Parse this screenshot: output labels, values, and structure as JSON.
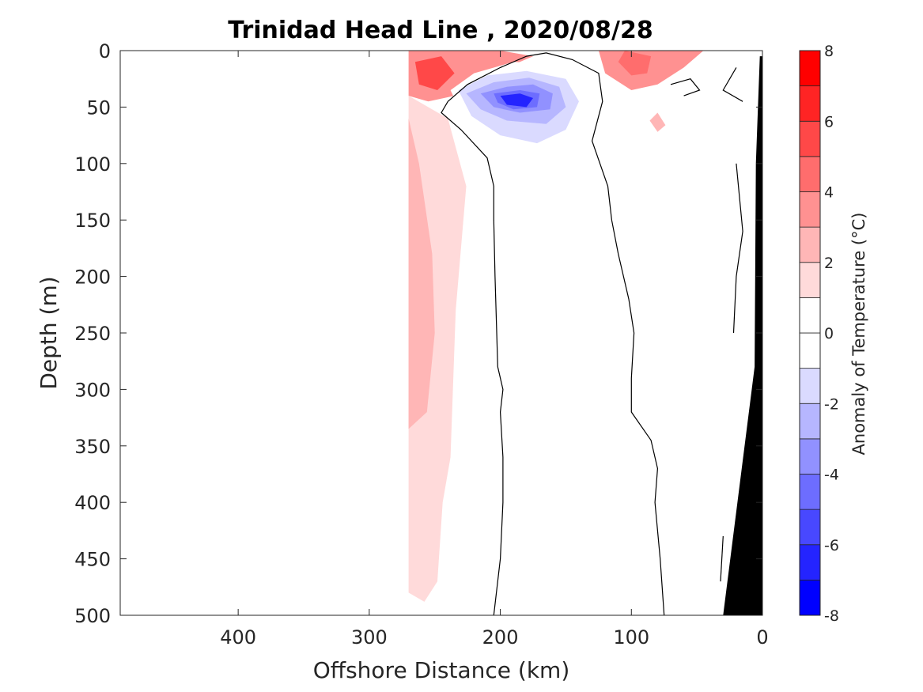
{
  "chart_data": {
    "type": "heatmap",
    "title": "Trinidad Head Line , 2020/08/28",
    "xlabel": "Offshore Distance (km)",
    "ylabel": "Depth (m)",
    "xlim": [
      490,
      0
    ],
    "ylim": [
      0,
      500
    ],
    "x_reversed": true,
    "y_reversed": true,
    "x_ticks": [
      400,
      300,
      200,
      100,
      0
    ],
    "y_ticks": [
      0,
      50,
      100,
      150,
      200,
      250,
      300,
      350,
      400,
      450,
      500
    ],
    "colorbar": {
      "label": "Anomaly of Temperature (°C)",
      "range": [
        -8,
        8
      ],
      "ticks": [
        8,
        6,
        4,
        2,
        0,
        -2,
        -4,
        -6,
        -8
      ],
      "levels": [
        -8,
        -7,
        -6,
        -5,
        -4,
        -3,
        -2,
        -1,
        0,
        1,
        2,
        3,
        4,
        5,
        6,
        7,
        8
      ],
      "colors": [
        "#0000ff",
        "#2424ff",
        "#4848ff",
        "#6d6dff",
        "#9191ff",
        "#b6b6ff",
        "#dadaff",
        "#ffffff",
        "#ffffff",
        "#ffdada",
        "#ffb6b6",
        "#ff9191",
        "#ff6d6d",
        "#ff4848",
        "#ff2424",
        "#ff0000"
      ]
    },
    "regions": [
      {
        "name": "warm-pink",
        "level": 1,
        "points": [
          [
            270,
            0
          ],
          [
            270,
            480
          ],
          [
            258,
            488
          ],
          [
            248,
            470
          ],
          [
            244,
            400
          ],
          [
            238,
            360
          ],
          [
            234,
            230
          ],
          [
            226,
            120
          ],
          [
            240,
            60
          ],
          [
            270,
            40
          ]
        ]
      },
      {
        "name": "warm-pink-2",
        "level": 2,
        "points": [
          [
            270,
            0
          ],
          [
            270,
            335
          ],
          [
            256,
            320
          ],
          [
            250,
            250
          ],
          [
            252,
            180
          ],
          [
            262,
            100
          ],
          [
            270,
            60
          ]
        ]
      },
      {
        "name": "warm-pink-3",
        "level": 2,
        "points": [
          [
            80,
            55
          ],
          [
            86,
            62
          ],
          [
            80,
            72
          ],
          [
            74,
            66
          ]
        ]
      },
      {
        "name": "warm-surface",
        "level": 3,
        "points": [
          [
            270,
            0
          ],
          [
            200,
            0
          ],
          [
            175,
            5
          ],
          [
            215,
            25
          ],
          [
            235,
            40
          ],
          [
            255,
            45
          ],
          [
            270,
            40
          ]
        ]
      },
      {
        "name": "warm-core",
        "level": 5,
        "points": [
          [
            265,
            10
          ],
          [
            245,
            5
          ],
          [
            235,
            20
          ],
          [
            248,
            35
          ],
          [
            262,
            30
          ]
        ]
      },
      {
        "name": "warm-nearshore",
        "level": 3,
        "points": [
          [
            125,
            0
          ],
          [
            45,
            0
          ],
          [
            60,
            15
          ],
          [
            80,
            30
          ],
          [
            100,
            35
          ],
          [
            120,
            20
          ]
        ]
      },
      {
        "name": "warm-nearshore-core",
        "level": 4,
        "points": [
          [
            105,
            0
          ],
          [
            85,
            5
          ],
          [
            88,
            20
          ],
          [
            100,
            22
          ],
          [
            110,
            10
          ]
        ]
      },
      {
        "name": "cool-1",
        "level": -1,
        "points": [
          [
            238,
            35
          ],
          [
            220,
            20
          ],
          [
            190,
            10
          ],
          [
            160,
            12
          ],
          [
            130,
            30
          ],
          [
            128,
            60
          ],
          [
            140,
            90
          ],
          [
            160,
            118
          ],
          [
            172,
            125
          ],
          [
            190,
            110
          ],
          [
            215,
            80
          ],
          [
            228,
            60
          ]
        ]
      },
      {
        "name": "cool-2",
        "level": -2,
        "points": [
          [
            232,
            35
          ],
          [
            210,
            22
          ],
          [
            180,
            18
          ],
          [
            150,
            25
          ],
          [
            140,
            45
          ],
          [
            150,
            70
          ],
          [
            172,
            82
          ],
          [
            200,
            75
          ],
          [
            222,
            58
          ]
        ]
      },
      {
        "name": "cool-3",
        "level": -3,
        "points": [
          [
            226,
            38
          ],
          [
            205,
            28
          ],
          [
            178,
            24
          ],
          [
            155,
            32
          ],
          [
            150,
            50
          ],
          [
            165,
            65
          ],
          [
            195,
            62
          ],
          [
            215,
            52
          ]
        ]
      },
      {
        "name": "cool-4",
        "level": -4,
        "points": [
          [
            215,
            38
          ],
          [
            195,
            32
          ],
          [
            175,
            30
          ],
          [
            160,
            38
          ],
          [
            162,
            52
          ],
          [
            185,
            55
          ],
          [
            205,
            50
          ]
        ]
      },
      {
        "name": "cool-5",
        "level": -5,
        "points": [
          [
            205,
            38
          ],
          [
            185,
            35
          ],
          [
            170,
            38
          ],
          [
            172,
            50
          ],
          [
            190,
            52
          ],
          [
            202,
            46
          ]
        ]
      },
      {
        "name": "cool-6",
        "level": -7,
        "points": [
          [
            200,
            40
          ],
          [
            185,
            38
          ],
          [
            175,
            42
          ],
          [
            180,
            50
          ],
          [
            195,
            48
          ]
        ]
      },
      {
        "name": "cool-small",
        "level": -1,
        "points": [
          [
            165,
            190
          ],
          [
            158,
            185
          ],
          [
            155,
            200
          ],
          [
            162,
            210
          ],
          [
            167,
            200
          ]
        ]
      }
    ],
    "contours": [
      {
        "level": 0,
        "points": [
          [
            240,
            45
          ],
          [
            225,
            30
          ],
          [
            200,
            15
          ],
          [
            180,
            5
          ],
          [
            165,
            2
          ],
          [
            145,
            8
          ],
          [
            125,
            20
          ],
          [
            122,
            45
          ],
          [
            130,
            80
          ],
          [
            118,
            120
          ],
          [
            115,
            150
          ],
          [
            110,
            180
          ],
          [
            102,
            220
          ],
          [
            98,
            250
          ],
          [
            100,
            290
          ],
          [
            100,
            320
          ],
          [
            85,
            345
          ],
          [
            80,
            370
          ],
          [
            82,
            400
          ],
          [
            78,
            450
          ],
          [
            75,
            500
          ]
        ]
      },
      {
        "level": 0,
        "points": [
          [
            240,
            45
          ],
          [
            245,
            55
          ],
          [
            230,
            70
          ],
          [
            210,
            95
          ],
          [
            205,
            120
          ],
          [
            205,
            150
          ],
          [
            204,
            200
          ],
          [
            203,
            240
          ],
          [
            202,
            280
          ],
          [
            198,
            300
          ],
          [
            200,
            320
          ],
          [
            198,
            360
          ],
          [
            198,
            400
          ],
          [
            200,
            450
          ],
          [
            205,
            500
          ]
        ]
      },
      {
        "level": 0,
        "points": [
          [
            70,
            30
          ],
          [
            55,
            25
          ],
          [
            48,
            35
          ],
          [
            60,
            40
          ]
        ]
      },
      {
        "level": 0,
        "points": [
          [
            20,
            15
          ],
          [
            30,
            35
          ],
          [
            15,
            45
          ]
        ]
      },
      {
        "level": 0,
        "points": [
          [
            20,
            100
          ],
          [
            15,
            160
          ],
          [
            20,
            200
          ],
          [
            22,
            250
          ]
        ]
      },
      {
        "level": 0,
        "points": [
          [
            30,
            430
          ],
          [
            32,
            470
          ]
        ]
      }
    ],
    "land": {
      "points": [
        [
          0,
          5
        ],
        [
          0,
          500
        ],
        [
          30,
          500
        ],
        [
          6,
          280
        ],
        [
          5,
          100
        ],
        [
          2,
          5
        ]
      ]
    }
  }
}
